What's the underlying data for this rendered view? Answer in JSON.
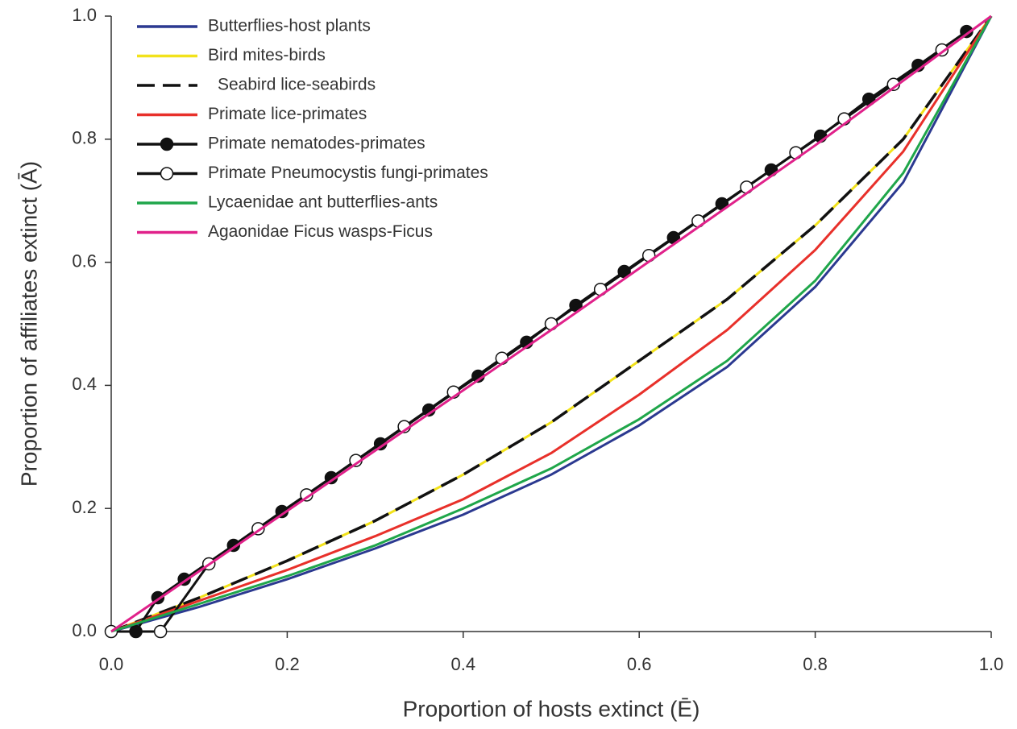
{
  "chart_data": {
    "type": "line",
    "xlabel": "Proportion of hosts extinct (Ē)",
    "ylabel": "Proportion of affiliates extinct (Ā)",
    "xlim": [
      0,
      1
    ],
    "ylim": [
      0,
      1
    ],
    "xticks": [
      {
        "value": 0,
        "label": "0.0"
      },
      0.2,
      0.4,
      0.6,
      0.8,
      {
        "value": 1,
        "label": "1.0"
      }
    ],
    "yticks": [
      {
        "value": 0,
        "label": "0.0"
      },
      0.2,
      0.4,
      0.6,
      0.8,
      {
        "value": 1,
        "label": "1.0"
      }
    ],
    "legend": "upper left",
    "series": [
      {
        "name": "Butterflies-host plants",
        "color": "#2b3990",
        "line_style": "solid",
        "x": [
          0,
          0.1,
          0.2,
          0.3,
          0.4,
          0.5,
          0.6,
          0.7,
          0.8,
          0.9,
          1.0
        ],
        "values": [
          0,
          0.04,
          0.085,
          0.135,
          0.19,
          0.255,
          0.335,
          0.43,
          0.56,
          0.73,
          1.0
        ]
      },
      {
        "name": "Bird mites-birds",
        "color": "#f2e21b",
        "line_style": "solid",
        "x": [
          0,
          0.1,
          0.2,
          0.3,
          0.4,
          0.5,
          0.6,
          0.7,
          0.8,
          0.9,
          1.0
        ],
        "values": [
          0,
          0.055,
          0.115,
          0.18,
          0.255,
          0.34,
          0.44,
          0.54,
          0.66,
          0.8,
          1.0
        ]
      },
      {
        "name": "Seabird lice-seabirds",
        "color": "#111111",
        "line_style": "dashed",
        "x": [
          0,
          0.1,
          0.2,
          0.3,
          0.4,
          0.5,
          0.6,
          0.7,
          0.8,
          0.9,
          1.0
        ],
        "values": [
          0,
          0.055,
          0.115,
          0.18,
          0.255,
          0.34,
          0.44,
          0.54,
          0.66,
          0.8,
          1.0
        ]
      },
      {
        "name": "Primate lice-primates",
        "color": "#e8302a",
        "line_style": "solid",
        "x": [
          0,
          0.1,
          0.2,
          0.3,
          0.4,
          0.5,
          0.6,
          0.7,
          0.8,
          0.9,
          1.0
        ],
        "values": [
          0,
          0.05,
          0.1,
          0.155,
          0.215,
          0.29,
          0.385,
          0.49,
          0.62,
          0.78,
          1.0
        ]
      },
      {
        "name": "Primate nematodes-primates",
        "color": "#111111",
        "line_style": "solid",
        "marker": "filled-circle",
        "x": [
          0.028,
          0.053,
          0.083,
          0.139,
          0.194,
          0.25,
          0.306,
          0.361,
          0.417,
          0.472,
          0.528,
          0.583,
          0.639,
          0.694,
          0.75,
          0.806,
          0.861,
          0.917,
          0.972
        ],
        "values": [
          0,
          0.055,
          0.085,
          0.14,
          0.195,
          0.25,
          0.305,
          0.36,
          0.415,
          0.47,
          0.53,
          0.585,
          0.64,
          0.695,
          0.75,
          0.805,
          0.865,
          0.92,
          0.975
        ]
      },
      {
        "name": "Primate Pneumocystis fungi-primates",
        "color": "#111111",
        "line_style": "solid",
        "marker": "open-circle",
        "x": [
          0,
          0.056,
          0.111,
          0.167,
          0.222,
          0.278,
          0.333,
          0.389,
          0.444,
          0.5,
          0.556,
          0.611,
          0.667,
          0.722,
          0.778,
          0.833,
          0.889,
          0.944
        ],
        "values": [
          0,
          0,
          0.11,
          0.167,
          0.222,
          0.278,
          0.333,
          0.389,
          0.444,
          0.5,
          0.556,
          0.611,
          0.667,
          0.722,
          0.778,
          0.833,
          0.889,
          0.945
        ]
      },
      {
        "name": "Lycaenidae ant butterflies-ants",
        "color": "#1fa64a",
        "line_style": "solid",
        "x": [
          0,
          0.1,
          0.2,
          0.3,
          0.4,
          0.5,
          0.6,
          0.7,
          0.8,
          0.9,
          1.0
        ],
        "values": [
          0,
          0.045,
          0.09,
          0.14,
          0.2,
          0.265,
          0.345,
          0.44,
          0.57,
          0.745,
          1.0
        ]
      },
      {
        "name": "Agaonidae Ficus wasps-Ficus",
        "color": "#e0218a",
        "line_style": "solid",
        "x": [
          0,
          0.1,
          0.2,
          0.3,
          0.4,
          0.5,
          0.6,
          0.7,
          0.8,
          0.9,
          1.0
        ],
        "values": [
          0,
          0.098,
          0.196,
          0.294,
          0.392,
          0.49,
          0.59,
          0.69,
          0.79,
          0.895,
          1.0
        ]
      }
    ]
  }
}
